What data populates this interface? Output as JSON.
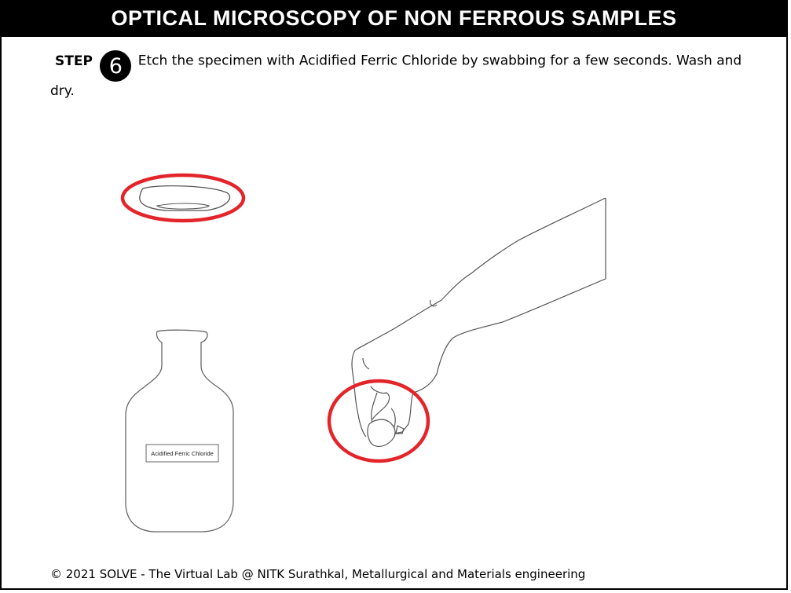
{
  "header": {
    "title": "OPTICAL MICROSCOPY OF NON FERROUS SAMPLES"
  },
  "step": {
    "label": "STEP",
    "number": "6",
    "instruction": "Etch the specimen with Acidified Ferric Chloride by swabbing for a few seconds. Wash and dry."
  },
  "bottle": {
    "label": "Acidified Ferric Chloride"
  },
  "highlight_color": "#e3252b",
  "icons": [
    "specimen-dish",
    "reagent-bottle",
    "hand-with-cotton-swab"
  ],
  "footer": {
    "text": "© 2021 SOLVE - The Virtual Lab @ NITK Surathkal, Metallurgical and Materials engineering"
  }
}
